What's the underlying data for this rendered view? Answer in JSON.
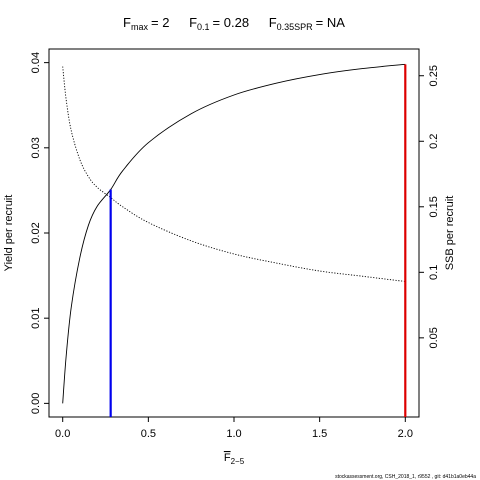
{
  "chart_data": {
    "type": "line",
    "title": {
      "fmax_symbol": "F",
      "fmax_sub": "max",
      "fmax_value": "= 2",
      "f01_symbol": "F",
      "f01_sub": "0.1",
      "f01_value": "= 0.28",
      "f035_symbol": "F",
      "f035_sub": "0.35SPR",
      "f035_value": "= NA"
    },
    "xlabel": {
      "symbol": "F",
      "sub": "2−5"
    },
    "ylabel_left": "Yield per recruit",
    "ylabel_right": "SSB per recruit",
    "xlim": [
      -0.08,
      2.08
    ],
    "ylim_left": [
      -0.0016,
      0.0416
    ],
    "ylim_right": [
      -0.0104,
      0.2704
    ],
    "x_ticks": [
      0,
      0.5,
      1.0,
      1.5,
      2.0
    ],
    "x_tick_labels": [
      "0.0",
      "0.5",
      "1.0",
      "1.5",
      "2.0"
    ],
    "y_left_ticks": [
      0,
      0.01,
      0.02,
      0.03,
      0.04
    ],
    "y_left_tick_labels": [
      "0.00",
      "0.01",
      "0.02",
      "0.03",
      "0.04"
    ],
    "y_right_ticks": [
      0.05,
      0.1,
      0.15,
      0.2,
      0.25
    ],
    "y_right_tick_labels": [
      "0.05",
      "0.1",
      "0.15",
      "0.2",
      "0.25"
    ],
    "series": [
      {
        "name": "Yield per recruit",
        "axis": "left",
        "style": "solid",
        "color": "#000000",
        "x": [
          0,
          0.02,
          0.05,
          0.1,
          0.15,
          0.2,
          0.28,
          0.35,
          0.5,
          0.75,
          1.0,
          1.25,
          1.5,
          1.75,
          2.0
        ],
        "y": [
          0,
          0.0055,
          0.0113,
          0.0171,
          0.0209,
          0.0231,
          0.0251,
          0.0273,
          0.0306,
          0.034,
          0.0362,
          0.0376,
          0.0386,
          0.0393,
          0.0398
        ]
      },
      {
        "name": "SSB per recruit",
        "axis": "right",
        "style": "dotted",
        "color": "#000000",
        "x": [
          0,
          0.02,
          0.05,
          0.1,
          0.15,
          0.2,
          0.28,
          0.35,
          0.5,
          0.75,
          1.0,
          1.25,
          1.5,
          1.75,
          2.0
        ],
        "y": [
          0.257,
          0.232,
          0.208,
          0.186,
          0.173,
          0.165,
          0.157,
          0.15,
          0.138,
          0.124,
          0.114,
          0.107,
          0.101,
          0.097,
          0.093
        ]
      }
    ],
    "reference_lines": [
      {
        "label": "F0.1",
        "x": 0.28,
        "y_top": 0.0251,
        "color": "#0000ee"
      },
      {
        "label": "Fmax",
        "x": 2.0,
        "y_top": 0.0398,
        "color": "#dd0000"
      }
    ],
    "grid": false,
    "legend": "none"
  },
  "footer_text": "stockassessment.org, CSH_2018_1, r9552 , git: d41b1a0eb44a"
}
